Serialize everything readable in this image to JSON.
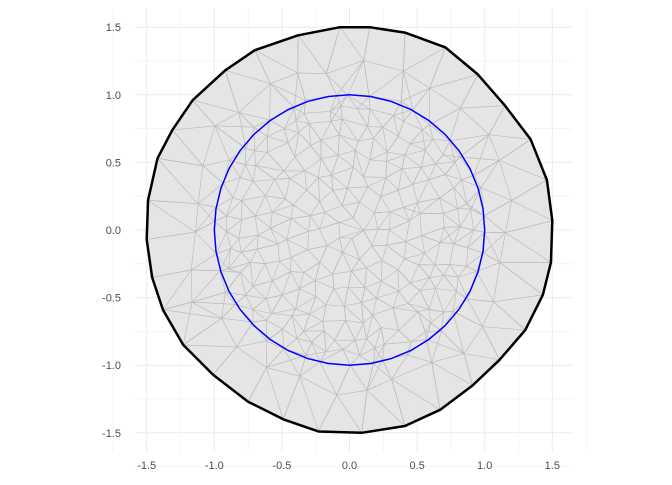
{
  "chart_data": {
    "type": "mesh",
    "title": "",
    "xlabel": "",
    "ylabel": "",
    "xlim": [
      -1.6,
      1.6
    ],
    "ylim": [
      -1.6,
      1.6
    ],
    "grid": true,
    "x_ticks": [
      "-1.5",
      "-1.0",
      "-0.5",
      "0.0",
      "0.5",
      "1.0",
      "1.5"
    ],
    "y_ticks": [
      "1.5",
      "1.0",
      "0.5",
      "0.0",
      "-0.5",
      "-1.0",
      "-1.5"
    ],
    "colors": {
      "fill": "#e5e5e5",
      "mesh_edges": "#bdbdbd",
      "outer_boundary": "#000000",
      "inner_boundary": "#0000ff",
      "grid": "#ebebeb"
    },
    "outer_boundary": [
      [
        -0.07,
        1.5
      ],
      [
        -0.38,
        1.44
      ],
      [
        -0.7,
        1.33
      ],
      [
        -0.92,
        1.18
      ],
      [
        -1.16,
        0.96
      ],
      [
        -1.31,
        0.74
      ],
      [
        -1.42,
        0.53
      ],
      [
        -1.49,
        0.22
      ],
      [
        -1.5,
        -0.07
      ],
      [
        -1.46,
        -0.35
      ],
      [
        -1.38,
        -0.59
      ],
      [
        -1.23,
        -0.85
      ],
      [
        -1.01,
        -1.07
      ],
      [
        -0.75,
        -1.27
      ],
      [
        -0.49,
        -1.4
      ],
      [
        -0.23,
        -1.49
      ],
      [
        0.09,
        -1.5
      ],
      [
        0.41,
        -1.45
      ],
      [
        0.67,
        -1.33
      ],
      [
        0.91,
        -1.15
      ],
      [
        1.11,
        -0.96
      ],
      [
        1.3,
        -0.74
      ],
      [
        1.43,
        -0.48
      ],
      [
        1.49,
        -0.24
      ],
      [
        1.5,
        0.07
      ],
      [
        1.46,
        0.37
      ],
      [
        1.34,
        0.67
      ],
      [
        1.15,
        0.92
      ],
      [
        0.95,
        1.15
      ],
      [
        0.71,
        1.35
      ],
      [
        0.41,
        1.46
      ],
      [
        0.15,
        1.5
      ]
    ],
    "inner_boundary": {
      "shape": "circle",
      "center": [
        0,
        0
      ],
      "radius": 1.0,
      "segments": 40
    }
  }
}
